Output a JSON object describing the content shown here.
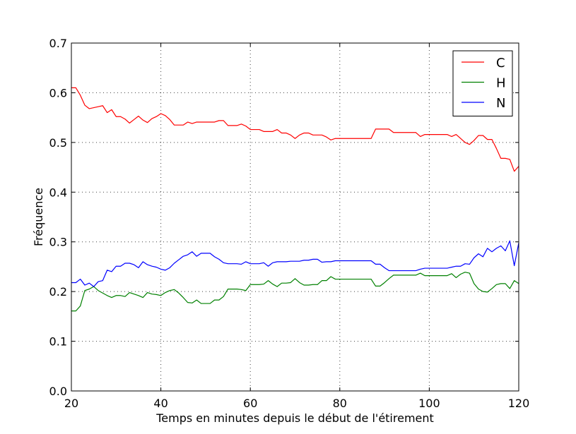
{
  "chart_data": {
    "type": "line",
    "xlabel": "Temps en minutes depuis le début de l'étirement",
    "ylabel": "Fréquence",
    "xlim": [
      20,
      120
    ],
    "ylim": [
      0.0,
      0.7
    ],
    "x_ticks": [
      20,
      40,
      60,
      80,
      100,
      120
    ],
    "x_tick_labels": [
      "20",
      "40",
      "60",
      "80",
      "100",
      "120"
    ],
    "y_ticks": [
      0.0,
      0.1,
      0.2,
      0.3,
      0.4,
      0.5,
      0.6,
      0.7
    ],
    "y_tick_labels": [
      "0.0",
      "0.1",
      "0.2",
      "0.3",
      "0.4",
      "0.5",
      "0.6",
      "0.7"
    ],
    "grid": true,
    "legend_position": "top-right",
    "series": [
      {
        "name": "C",
        "color": "#ff0000",
        "points": [
          [
            20,
            0.61
          ],
          [
            21,
            0.61
          ],
          [
            22,
            0.595
          ],
          [
            23,
            0.575
          ],
          [
            24,
            0.568
          ],
          [
            25,
            0.57
          ],
          [
            26,
            0.572
          ],
          [
            27,
            0.574
          ],
          [
            28,
            0.56
          ],
          [
            29,
            0.566
          ],
          [
            30,
            0.552
          ],
          [
            31,
            0.552
          ],
          [
            32,
            0.547
          ],
          [
            33,
            0.539
          ],
          [
            34,
            0.546
          ],
          [
            35,
            0.553
          ],
          [
            36,
            0.545
          ],
          [
            37,
            0.54
          ],
          [
            38,
            0.548
          ],
          [
            39,
            0.552
          ],
          [
            40,
            0.558
          ],
          [
            41,
            0.554
          ],
          [
            42,
            0.546
          ],
          [
            43,
            0.535
          ],
          [
            44,
            0.535
          ],
          [
            45,
            0.535
          ],
          [
            46,
            0.541
          ],
          [
            47,
            0.538
          ],
          [
            48,
            0.541
          ],
          [
            49,
            0.541
          ],
          [
            50,
            0.541
          ],
          [
            51,
            0.541
          ],
          [
            52,
            0.541
          ],
          [
            53,
            0.544
          ],
          [
            54,
            0.544
          ],
          [
            55,
            0.534
          ],
          [
            56,
            0.534
          ],
          [
            57,
            0.534
          ],
          [
            58,
            0.537
          ],
          [
            59,
            0.533
          ],
          [
            60,
            0.526
          ],
          [
            61,
            0.526
          ],
          [
            62,
            0.526
          ],
          [
            63,
            0.522
          ],
          [
            64,
            0.522
          ],
          [
            65,
            0.522
          ],
          [
            66,
            0.526
          ],
          [
            67,
            0.519
          ],
          [
            68,
            0.519
          ],
          [
            69,
            0.515
          ],
          [
            70,
            0.508
          ],
          [
            71,
            0.515
          ],
          [
            72,
            0.519
          ],
          [
            73,
            0.519
          ],
          [
            74,
            0.515
          ],
          [
            75,
            0.515
          ],
          [
            76,
            0.515
          ],
          [
            77,
            0.511
          ],
          [
            78,
            0.505
          ],
          [
            79,
            0.508
          ],
          [
            80,
            0.508
          ],
          [
            81,
            0.508
          ],
          [
            82,
            0.508
          ],
          [
            83,
            0.508
          ],
          [
            84,
            0.508
          ],
          [
            85,
            0.508
          ],
          [
            86,
            0.508
          ],
          [
            87,
            0.508
          ],
          [
            88,
            0.527
          ],
          [
            89,
            0.527
          ],
          [
            90,
            0.527
          ],
          [
            91,
            0.527
          ],
          [
            92,
            0.52
          ],
          [
            93,
            0.52
          ],
          [
            94,
            0.52
          ],
          [
            95,
            0.52
          ],
          [
            96,
            0.52
          ],
          [
            97,
            0.52
          ],
          [
            98,
            0.512
          ],
          [
            99,
            0.516
          ],
          [
            100,
            0.516
          ],
          [
            101,
            0.516
          ],
          [
            102,
            0.516
          ],
          [
            103,
            0.516
          ],
          [
            104,
            0.516
          ],
          [
            105,
            0.512
          ],
          [
            106,
            0.516
          ],
          [
            107,
            0.508
          ],
          [
            108,
            0.5
          ],
          [
            109,
            0.496
          ],
          [
            110,
            0.504
          ],
          [
            111,
            0.514
          ],
          [
            112,
            0.514
          ],
          [
            113,
            0.506
          ],
          [
            114,
            0.506
          ],
          [
            115,
            0.488
          ],
          [
            116,
            0.468
          ],
          [
            117,
            0.468
          ],
          [
            118,
            0.466
          ],
          [
            119,
            0.442
          ],
          [
            120,
            0.452
          ]
        ]
      },
      {
        "name": "H",
        "color": "#008000",
        "points": [
          [
            20,
            0.161
          ],
          [
            21,
            0.161
          ],
          [
            22,
            0.171
          ],
          [
            23,
            0.202
          ],
          [
            24,
            0.205
          ],
          [
            25,
            0.21
          ],
          [
            26,
            0.202
          ],
          [
            27,
            0.197
          ],
          [
            28,
            0.192
          ],
          [
            29,
            0.188
          ],
          [
            30,
            0.192
          ],
          [
            31,
            0.192
          ],
          [
            32,
            0.19
          ],
          [
            33,
            0.198
          ],
          [
            34,
            0.195
          ],
          [
            35,
            0.192
          ],
          [
            36,
            0.188
          ],
          [
            37,
            0.198
          ],
          [
            38,
            0.195
          ],
          [
            39,
            0.194
          ],
          [
            40,
            0.192
          ],
          [
            41,
            0.198
          ],
          [
            42,
            0.202
          ],
          [
            43,
            0.204
          ],
          [
            44,
            0.197
          ],
          [
            45,
            0.188
          ],
          [
            46,
            0.178
          ],
          [
            47,
            0.177
          ],
          [
            48,
            0.183
          ],
          [
            49,
            0.176
          ],
          [
            50,
            0.176
          ],
          [
            51,
            0.176
          ],
          [
            52,
            0.183
          ],
          [
            53,
            0.183
          ],
          [
            54,
            0.19
          ],
          [
            55,
            0.205
          ],
          [
            56,
            0.205
          ],
          [
            57,
            0.205
          ],
          [
            58,
            0.204
          ],
          [
            59,
            0.202
          ],
          [
            60,
            0.214
          ],
          [
            61,
            0.214
          ],
          [
            62,
            0.214
          ],
          [
            63,
            0.215
          ],
          [
            64,
            0.222
          ],
          [
            65,
            0.215
          ],
          [
            66,
            0.21
          ],
          [
            67,
            0.217
          ],
          [
            68,
            0.217
          ],
          [
            69,
            0.218
          ],
          [
            70,
            0.226
          ],
          [
            71,
            0.218
          ],
          [
            72,
            0.213
          ],
          [
            73,
            0.213
          ],
          [
            74,
            0.214
          ],
          [
            75,
            0.214
          ],
          [
            76,
            0.222
          ],
          [
            77,
            0.222
          ],
          [
            78,
            0.23
          ],
          [
            79,
            0.225
          ],
          [
            80,
            0.225
          ],
          [
            81,
            0.225
          ],
          [
            82,
            0.225
          ],
          [
            83,
            0.225
          ],
          [
            84,
            0.225
          ],
          [
            85,
            0.225
          ],
          [
            86,
            0.225
          ],
          [
            87,
            0.225
          ],
          [
            88,
            0.211
          ],
          [
            89,
            0.211
          ],
          [
            90,
            0.218
          ],
          [
            91,
            0.226
          ],
          [
            92,
            0.233
          ],
          [
            93,
            0.233
          ],
          [
            94,
            0.233
          ],
          [
            95,
            0.233
          ],
          [
            96,
            0.233
          ],
          [
            97,
            0.233
          ],
          [
            98,
            0.237
          ],
          [
            99,
            0.232
          ],
          [
            100,
            0.232
          ],
          [
            101,
            0.232
          ],
          [
            102,
            0.232
          ],
          [
            103,
            0.232
          ],
          [
            104,
            0.232
          ],
          [
            105,
            0.236
          ],
          [
            106,
            0.228
          ],
          [
            107,
            0.235
          ],
          [
            108,
            0.239
          ],
          [
            109,
            0.237
          ],
          [
            110,
            0.216
          ],
          [
            111,
            0.205
          ],
          [
            112,
            0.2
          ],
          [
            113,
            0.199
          ],
          [
            114,
            0.206
          ],
          [
            115,
            0.214
          ],
          [
            116,
            0.216
          ],
          [
            117,
            0.216
          ],
          [
            118,
            0.206
          ],
          [
            119,
            0.222
          ],
          [
            120,
            0.216
          ]
        ]
      },
      {
        "name": "N",
        "color": "#0000ff",
        "points": [
          [
            20,
            0.218
          ],
          [
            21,
            0.218
          ],
          [
            22,
            0.225
          ],
          [
            23,
            0.213
          ],
          [
            24,
            0.217
          ],
          [
            25,
            0.21
          ],
          [
            26,
            0.22
          ],
          [
            27,
            0.222
          ],
          [
            28,
            0.243
          ],
          [
            29,
            0.24
          ],
          [
            30,
            0.251
          ],
          [
            31,
            0.251
          ],
          [
            32,
            0.257
          ],
          [
            33,
            0.257
          ],
          [
            34,
            0.254
          ],
          [
            35,
            0.248
          ],
          [
            36,
            0.26
          ],
          [
            37,
            0.254
          ],
          [
            38,
            0.251
          ],
          [
            39,
            0.249
          ],
          [
            40,
            0.245
          ],
          [
            41,
            0.243
          ],
          [
            42,
            0.248
          ],
          [
            43,
            0.257
          ],
          [
            44,
            0.264
          ],
          [
            45,
            0.271
          ],
          [
            46,
            0.274
          ],
          [
            47,
            0.28
          ],
          [
            48,
            0.271
          ],
          [
            49,
            0.277
          ],
          [
            50,
            0.277
          ],
          [
            51,
            0.277
          ],
          [
            52,
            0.27
          ],
          [
            53,
            0.265
          ],
          [
            54,
            0.258
          ],
          [
            55,
            0.256
          ],
          [
            56,
            0.256
          ],
          [
            57,
            0.256
          ],
          [
            58,
            0.255
          ],
          [
            59,
            0.26
          ],
          [
            60,
            0.256
          ],
          [
            61,
            0.256
          ],
          [
            62,
            0.256
          ],
          [
            63,
            0.258
          ],
          [
            64,
            0.251
          ],
          [
            65,
            0.258
          ],
          [
            66,
            0.26
          ],
          [
            67,
            0.26
          ],
          [
            68,
            0.26
          ],
          [
            69,
            0.261
          ],
          [
            70,
            0.261
          ],
          [
            71,
            0.261
          ],
          [
            72,
            0.263
          ],
          [
            73,
            0.263
          ],
          [
            74,
            0.265
          ],
          [
            75,
            0.265
          ],
          [
            76,
            0.259
          ],
          [
            77,
            0.26
          ],
          [
            78,
            0.26
          ],
          [
            79,
            0.262
          ],
          [
            80,
            0.262
          ],
          [
            81,
            0.262
          ],
          [
            82,
            0.262
          ],
          [
            83,
            0.262
          ],
          [
            84,
            0.262
          ],
          [
            85,
            0.262
          ],
          [
            86,
            0.262
          ],
          [
            87,
            0.262
          ],
          [
            88,
            0.255
          ],
          [
            89,
            0.255
          ],
          [
            90,
            0.248
          ],
          [
            91,
            0.242
          ],
          [
            92,
            0.242
          ],
          [
            93,
            0.242
          ],
          [
            94,
            0.242
          ],
          [
            95,
            0.242
          ],
          [
            96,
            0.242
          ],
          [
            97,
            0.242
          ],
          [
            98,
            0.245
          ],
          [
            99,
            0.247
          ],
          [
            100,
            0.247
          ],
          [
            101,
            0.247
          ],
          [
            102,
            0.247
          ],
          [
            103,
            0.247
          ],
          [
            104,
            0.247
          ],
          [
            105,
            0.249
          ],
          [
            106,
            0.251
          ],
          [
            107,
            0.251
          ],
          [
            108,
            0.256
          ],
          [
            109,
            0.255
          ],
          [
            110,
            0.268
          ],
          [
            111,
            0.276
          ],
          [
            112,
            0.27
          ],
          [
            113,
            0.287
          ],
          [
            114,
            0.28
          ],
          [
            115,
            0.287
          ],
          [
            116,
            0.292
          ],
          [
            117,
            0.282
          ],
          [
            118,
            0.302
          ],
          [
            119,
            0.252
          ],
          [
            120,
            0.298
          ]
        ]
      }
    ]
  }
}
